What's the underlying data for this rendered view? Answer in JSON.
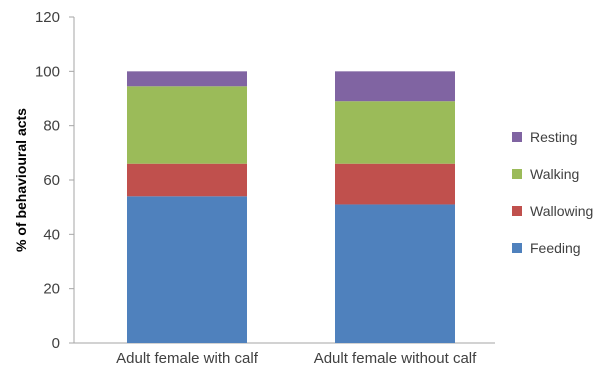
{
  "chart_data": {
    "type": "bar",
    "stacked": true,
    "categories": [
      "Adult female with calf",
      "Adult female without calf"
    ],
    "series": [
      {
        "name": "Feeding",
        "values": [
          54,
          51
        ],
        "color": "#4f81bd"
      },
      {
        "name": "Wallowing",
        "values": [
          12,
          15
        ],
        "color": "#c0504d"
      },
      {
        "name": "Walking",
        "values": [
          28.5,
          23
        ],
        "color": "#9bbb59"
      },
      {
        "name": "Resting",
        "values": [
          5.5,
          11
        ],
        "color": "#8064a2"
      }
    ],
    "title": "",
    "xlabel": "",
    "ylabel": "% of behavioural acts",
    "ylim": [
      0,
      120
    ],
    "yticks": [
      0,
      20,
      40,
      60,
      80,
      100,
      120
    ],
    "grid": false,
    "legend": "right",
    "legend_order": [
      "Resting",
      "Walking",
      "Wallowing",
      "Feeding"
    ]
  }
}
